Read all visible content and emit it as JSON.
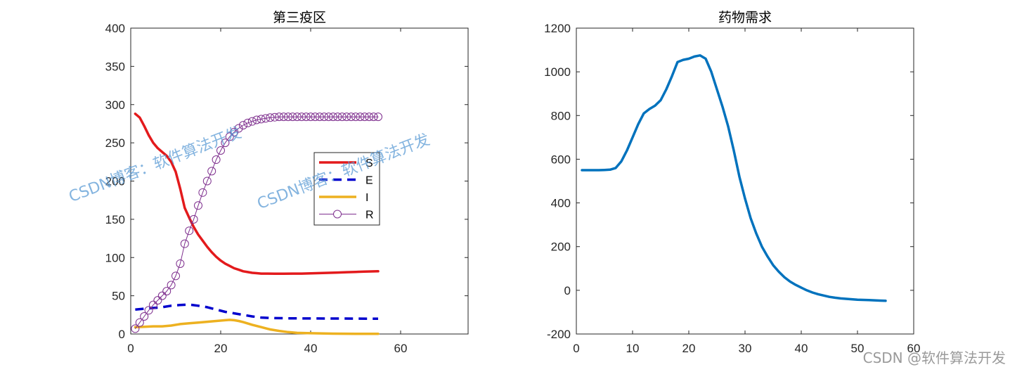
{
  "chart_data": [
    {
      "type": "line",
      "title": "第三疫区",
      "xlabel": "",
      "ylabel": "",
      "xlim": [
        0,
        75
      ],
      "ylim": [
        0,
        400
      ],
      "xticks": [
        0,
        20,
        40,
        60
      ],
      "yticks": [
        0,
        50,
        100,
        150,
        200,
        250,
        300,
        350,
        400
      ],
      "grid": false,
      "legend_position": "right-middle",
      "series": [
        {
          "name": "S",
          "color": "#e31a1c",
          "style": "solid",
          "x": [
            1,
            2,
            3,
            4,
            5,
            6,
            7,
            8,
            9,
            10,
            11,
            12,
            13,
            14,
            15,
            16,
            17,
            18,
            19,
            20,
            21,
            22,
            23,
            24,
            25,
            26,
            27,
            28,
            29,
            30,
            32,
            34,
            36,
            38,
            40,
            42,
            44,
            46,
            48,
            50,
            52,
            55
          ],
          "values": [
            288,
            283,
            272,
            260,
            250,
            243,
            238,
            233,
            225,
            212,
            190,
            165,
            152,
            140,
            130,
            122,
            114,
            107,
            101,
            96,
            92,
            89,
            86,
            84,
            82,
            81,
            80,
            79.5,
            79,
            79,
            78.8,
            78.8,
            79,
            79,
            79.3,
            79.6,
            80,
            80.4,
            80.8,
            81.2,
            81.6,
            82
          ]
        },
        {
          "name": "E",
          "color": "#0000cd",
          "style": "dashed",
          "x": [
            1,
            3,
            5,
            7,
            9,
            11,
            13,
            15,
            17,
            19,
            21,
            23,
            25,
            27,
            29,
            31,
            35,
            40,
            45,
            50,
            55
          ],
          "values": [
            32,
            33,
            34,
            35,
            37,
            38,
            38.5,
            37,
            35,
            32,
            29,
            27,
            25,
            23,
            21.5,
            21,
            20.5,
            20.3,
            20.2,
            20.1,
            20
          ]
        },
        {
          "name": "I",
          "color": "#edb120",
          "style": "solid",
          "x": [
            1,
            3,
            5,
            7,
            9,
            11,
            13,
            15,
            17,
            19,
            21,
            22,
            23,
            24,
            25,
            27,
            29,
            31,
            33,
            35,
            37,
            40,
            45,
            50,
            55
          ],
          "values": [
            9,
            9.5,
            10,
            10,
            11,
            13,
            14,
            15,
            16,
            17,
            18,
            18.5,
            18,
            17,
            15.5,
            12,
            9,
            6,
            4,
            2.5,
            1.5,
            1,
            0.5,
            0.3,
            0.2
          ]
        },
        {
          "name": "R",
          "color": "#7e2f8e",
          "style": "solid-circle-markers",
          "x": [
            1,
            2,
            3,
            4,
            5,
            6,
            7,
            8,
            9,
            10,
            11,
            12,
            13,
            14,
            15,
            16,
            17,
            18,
            19,
            20,
            21,
            22,
            23,
            24,
            25,
            26,
            27,
            28,
            29,
            30,
            31,
            32,
            33,
            34,
            35,
            36,
            37,
            38,
            39,
            40,
            41,
            42,
            43,
            44,
            45,
            46,
            47,
            48,
            49,
            50,
            51,
            52,
            53,
            54,
            55
          ],
          "values": [
            7,
            15,
            23,
            31,
            38,
            44,
            50,
            56,
            64,
            76,
            92,
            118,
            135,
            150,
            168,
            185,
            200,
            213,
            228,
            240,
            250,
            258,
            264,
            269,
            273,
            276,
            278,
            280,
            281,
            282,
            283,
            283.5,
            284,
            284,
            284,
            284,
            284,
            284,
            284,
            284,
            284,
            284,
            284,
            284,
            284,
            284,
            284,
            284,
            284,
            284,
            284,
            284,
            284,
            284,
            284
          ]
        }
      ]
    },
    {
      "type": "line",
      "title": "药物需求",
      "xlabel": "",
      "ylabel": "",
      "xlim": [
        0,
        60
      ],
      "ylim": [
        -200,
        1200
      ],
      "xticks": [
        0,
        10,
        20,
        30,
        40,
        50,
        60
      ],
      "yticks": [
        -200,
        0,
        200,
        400,
        600,
        800,
        1000,
        1200
      ],
      "grid": false,
      "series": [
        {
          "color": "#0072bd",
          "style": "solid",
          "x": [
            1,
            2,
            3,
            4,
            5,
            6,
            7,
            8,
            9,
            10,
            11,
            12,
            13,
            14,
            15,
            16,
            17,
            18,
            19,
            20,
            21,
            22,
            23,
            24,
            25,
            26,
            27,
            28,
            29,
            30,
            31,
            32,
            33,
            34,
            35,
            36,
            37,
            38,
            39,
            40,
            41,
            42,
            43,
            44,
            45,
            46,
            47,
            48,
            49,
            50,
            51,
            52,
            53,
            54,
            55
          ],
          "values": [
            550,
            550,
            550,
            550,
            551,
            552,
            560,
            590,
            640,
            700,
            760,
            810,
            830,
            845,
            870,
            920,
            980,
            1045,
            1055,
            1060,
            1070,
            1075,
            1060,
            1000,
            920,
            840,
            750,
            640,
            520,
            420,
            330,
            260,
            200,
            155,
            115,
            85,
            60,
            40,
            25,
            12,
            0,
            -10,
            -18,
            -24,
            -30,
            -34,
            -37,
            -39,
            -41,
            -43,
            -44,
            -45,
            -46,
            -47,
            -48
          ]
        }
      ]
    }
  ],
  "watermarks": {
    "left": "CSDN博客：软件算法开发",
    "middle": "CSDN博客：软件算法开发",
    "corner": "CSDN @软件算法开发"
  }
}
